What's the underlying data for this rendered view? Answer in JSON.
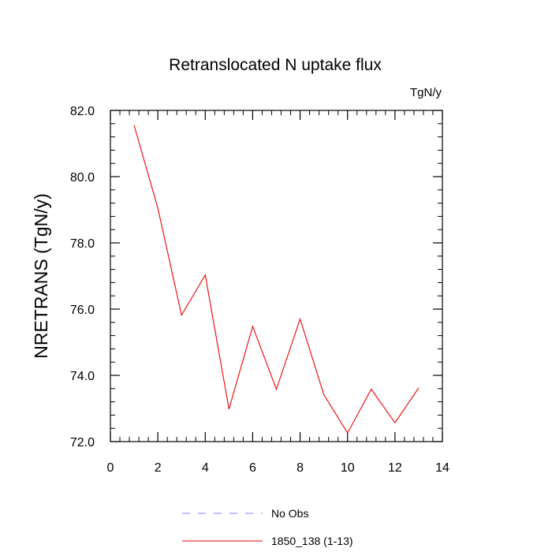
{
  "chart_data": {
    "type": "line",
    "title": "Retranslocated N uptake flux",
    "units": "TgN/y",
    "xlabel": "",
    "ylabel": "NRETRANS  (TgN/y)",
    "xlim": [
      0,
      14
    ],
    "ylim": [
      72.0,
      82.0
    ],
    "x_ticks": [
      0,
      2,
      4,
      6,
      8,
      10,
      12,
      14
    ],
    "x_tick_labels": [
      "0",
      "2",
      "4",
      "6",
      "8",
      "10",
      "12",
      "14"
    ],
    "y_ticks": [
      72.0,
      74.0,
      76.0,
      78.0,
      80.0,
      82.0
    ],
    "y_tick_labels": [
      "72.0",
      "74.0",
      "76.0",
      "78.0",
      "80.0",
      "82.0"
    ],
    "grid": false,
    "legend_position": "bottom",
    "series": [
      {
        "name": "No Obs",
        "color": "#8080ff",
        "style": "dashed",
        "x": [],
        "values": []
      },
      {
        "name": "1850_138 (1-13)",
        "color": "#ee0000",
        "style": "solid",
        "x": [
          1,
          2,
          3,
          4,
          5,
          6,
          7,
          8,
          9,
          10,
          11,
          12,
          13
        ],
        "values": [
          81.55,
          79.05,
          75.82,
          77.03,
          72.98,
          75.48,
          73.58,
          75.7,
          73.42,
          72.26,
          73.58,
          72.57,
          73.62
        ]
      }
    ]
  }
}
